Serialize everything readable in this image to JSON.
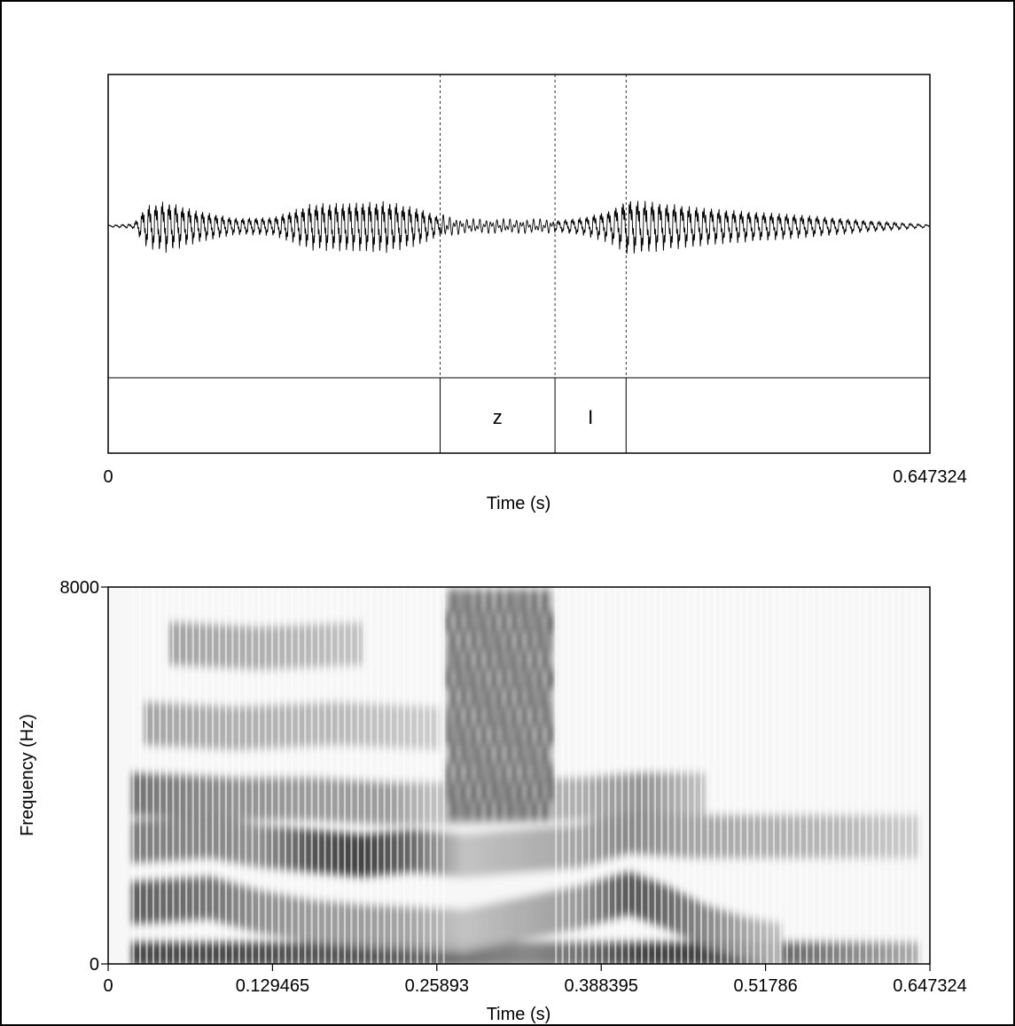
{
  "chart_data": [
    {
      "type": "line",
      "panel": "waveform with annotation tier",
      "x_axis": {
        "label": "Time (s)",
        "range": [
          0,
          0.647324
        ],
        "ticks": [
          "0",
          "0.647324"
        ]
      },
      "boundaries_s": [
        0.2615,
        0.352,
        0.408
      ],
      "tier": {
        "intervals": [
          {
            "start": 0,
            "end": 0.2615,
            "label": ""
          },
          {
            "start": 0.2615,
            "end": 0.352,
            "label": "z"
          },
          {
            "start": 0.352,
            "end": 0.408,
            "label": "I"
          },
          {
            "start": 0.408,
            "end": 0.647324,
            "label": ""
          }
        ]
      },
      "envelope": {
        "t": [
          0,
          0.02,
          0.03,
          0.045,
          0.07,
          0.1,
          0.13,
          0.16,
          0.19,
          0.22,
          0.245,
          0.262,
          0.28,
          0.33,
          0.352,
          0.375,
          0.395,
          0.41,
          0.44,
          0.48,
          0.52,
          0.56,
          0.6,
          0.647324
        ],
        "amplitude": [
          0.02,
          0.05,
          0.45,
          0.55,
          0.35,
          0.18,
          0.2,
          0.5,
          0.52,
          0.55,
          0.4,
          0.2,
          0.12,
          0.12,
          0.12,
          0.2,
          0.35,
          0.6,
          0.5,
          0.38,
          0.3,
          0.22,
          0.12,
          0.03
        ]
      }
    },
    {
      "type": "heatmap",
      "panel": "spectrogram",
      "x_axis": {
        "label": "Time (s)",
        "range": [
          0,
          0.647324
        ],
        "ticks": [
          "0",
          "0.129465",
          "0.25893",
          "0.388395",
          "0.51786",
          "0.647324"
        ]
      },
      "y_axis": {
        "label": "Frequency (Hz)",
        "range": [
          0,
          8000
        ],
        "ticks": [
          "0",
          "8000"
        ]
      },
      "colormap": "grayscale, darker = more energy",
      "formant_bands": [
        {
          "t": [
            0.02,
            0.09,
            0.15,
            0.2,
            0.24,
            0.28,
            0.33,
            0.37,
            0.42,
            0.46,
            0.5,
            0.55,
            0.6,
            0.64
          ],
          "f_hz": [
            200,
            200,
            200,
            200,
            200,
            200,
            200,
            200,
            200,
            200,
            200,
            200,
            200,
            200
          ],
          "strength": [
            0.9,
            0.9,
            0.85,
            0.85,
            0.8,
            0.7,
            0.6,
            0.7,
            0.95,
            0.95,
            0.85,
            0.7,
            0.55,
            0.4
          ]
        },
        {
          "t": [
            0.02,
            0.08,
            0.12,
            0.16,
            0.2,
            0.24,
            0.28,
            0.37,
            0.41,
            0.44,
            0.47,
            0.5,
            0.53
          ],
          "f_hz": [
            1300,
            1400,
            1100,
            900,
            800,
            750,
            700,
            1200,
            1500,
            1200,
            800,
            550,
            400
          ],
          "strength": [
            0.8,
            0.7,
            0.55,
            0.5,
            0.5,
            0.45,
            0.3,
            0.5,
            0.85,
            0.75,
            0.6,
            0.45,
            0.3
          ]
        },
        {
          "t": [
            0.02,
            0.08,
            0.12,
            0.16,
            0.2,
            0.24,
            0.28,
            0.37,
            0.41,
            0.46,
            0.52,
            0.58,
            0.64
          ],
          "f_hz": [
            2600,
            2700,
            2500,
            2400,
            2300,
            2400,
            2300,
            2500,
            2800,
            2700,
            2700,
            2700,
            2700
          ],
          "strength": [
            0.65,
            0.6,
            0.55,
            0.85,
            0.95,
            0.75,
            0.3,
            0.45,
            0.6,
            0.45,
            0.4,
            0.35,
            0.25
          ]
        },
        {
          "t": [
            0.02,
            0.1,
            0.16,
            0.22,
            0.26,
            0.37,
            0.42,
            0.47
          ],
          "f_hz": [
            3600,
            3500,
            3500,
            3400,
            3400,
            3500,
            3600,
            3600
          ],
          "strength": [
            0.7,
            0.55,
            0.5,
            0.5,
            0.3,
            0.4,
            0.55,
            0.3
          ]
        },
        {
          "t": [
            0.03,
            0.1,
            0.18,
            0.26
          ],
          "f_hz": [
            5100,
            5000,
            5100,
            5000
          ],
          "strength": [
            0.45,
            0.4,
            0.35,
            0.25
          ]
        },
        {
          "t": [
            0.05,
            0.12,
            0.2
          ],
          "f_hz": [
            6800,
            6700,
            6800
          ],
          "strength": [
            0.45,
            0.4,
            0.3
          ]
        }
      ],
      "frication_region": {
        "t_start": 0.268,
        "t_end": 0.352,
        "f_min_hz": 3300,
        "f_max_hz": 8000,
        "strength": 0.85
      }
    }
  ]
}
